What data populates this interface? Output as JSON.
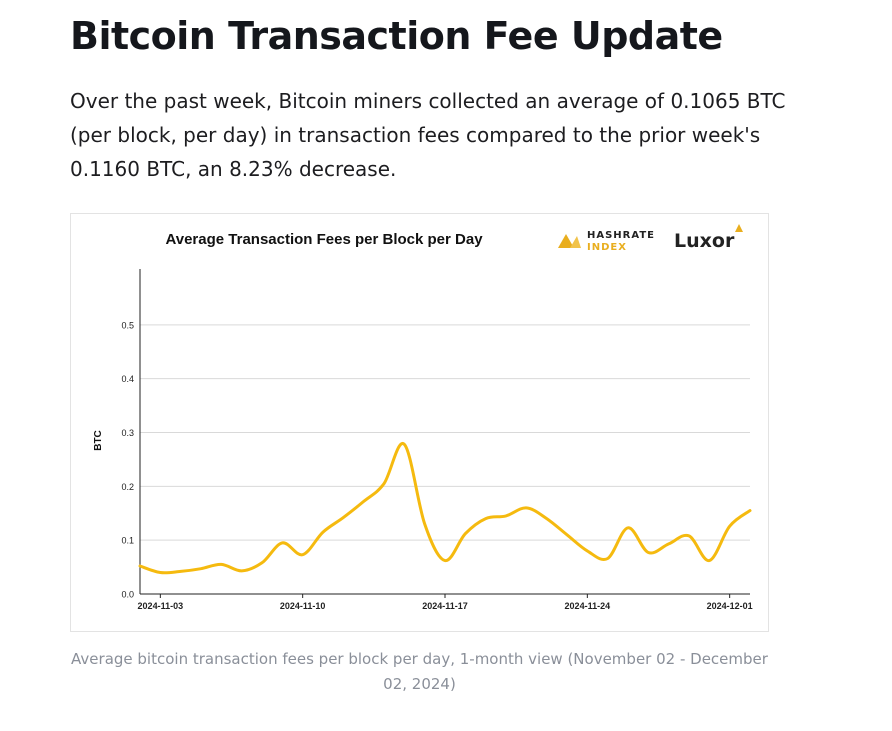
{
  "article": {
    "title": "Bitcoin Transaction Fee Update",
    "intro": "Over the past week, Bitcoin miners collected an average of 0.1065 BTC (per block, per day) in transaction fees compared to the prior week's 0.1160 BTC, an 8.23% decrease.",
    "caption": "Average bitcoin transaction fees per block per day, 1-month view (November 02 - December 02, 2024)"
  },
  "branding": {
    "hashrate_line1": "HASHRATE",
    "hashrate_line2": "INDEX",
    "luxor": "Luxor",
    "hashrate_icon": "hashrate-index-logo-icon",
    "luxor_icon": "luxor-logo-icon"
  },
  "colors": {
    "line": "#F5BA0F",
    "brand_gold": "#E9AE1E",
    "grid": "#d9d9d9",
    "axis": "#222222"
  },
  "chart_data": {
    "type": "line",
    "title": "Average Transaction Fees per Block per Day",
    "xlabel": "",
    "ylabel": "BTC",
    "ylim": [
      0,
      0.6
    ],
    "yticks": [
      0.0,
      0.1,
      0.2,
      0.3,
      0.4,
      0.5
    ],
    "ytick_labels": [
      "0.0",
      "0.1",
      "0.2",
      "0.3",
      "0.4",
      "0.5"
    ],
    "xlim": [
      "2024-11-02",
      "2024-12-02"
    ],
    "xticks": [
      "2024-11-03",
      "2024-11-10",
      "2024-11-17",
      "2024-11-24",
      "2024-12-01"
    ],
    "grid": true,
    "legend": "none",
    "series": [
      {
        "x": [
          "2024-11-02",
          "2024-11-03",
          "2024-11-04",
          "2024-11-05",
          "2024-11-06",
          "2024-11-07",
          "2024-11-08",
          "2024-11-09",
          "2024-11-10",
          "2024-11-11",
          "2024-11-12",
          "2024-11-13",
          "2024-11-14",
          "2024-11-15",
          "2024-11-16",
          "2024-11-17",
          "2024-11-18",
          "2024-11-19",
          "2024-11-20",
          "2024-11-21",
          "2024-11-22",
          "2024-11-23",
          "2024-11-24",
          "2024-11-25",
          "2024-11-26",
          "2024-11-27",
          "2024-11-28",
          "2024-11-29",
          "2024-11-30",
          "2024-12-01",
          "2024-12-02"
        ],
        "values": [
          0.052,
          0.04,
          0.042,
          0.047,
          0.055,
          0.043,
          0.058,
          0.095,
          0.073,
          0.115,
          0.142,
          0.172,
          0.205,
          0.278,
          0.13,
          0.062,
          0.112,
          0.14,
          0.145,
          0.16,
          0.14,
          0.11,
          0.08,
          0.066,
          0.123,
          0.077,
          0.093,
          0.108,
          0.062,
          0.126,
          0.155
        ]
      }
    ]
  }
}
